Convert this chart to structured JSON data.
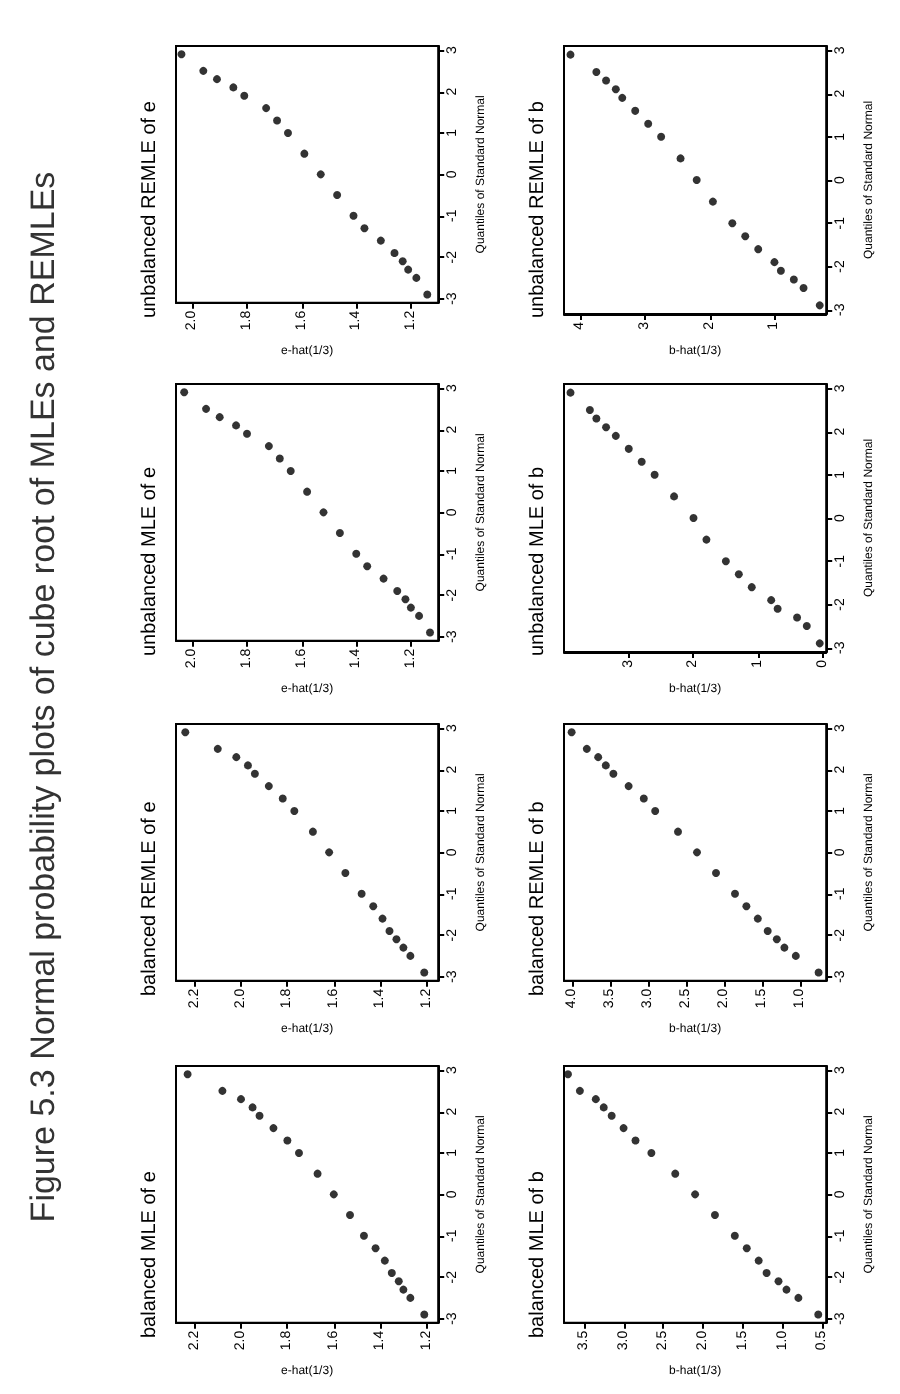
{
  "chart_data": [
    {
      "type": "scatter",
      "title": "balanced MLE of e",
      "xlabel": "e-hat(1/3)",
      "ylabel": "Quantiles of Standard Normal",
      "values": [
        -2.9,
        -2.5,
        -2.3,
        -2.1,
        -1.9,
        -1.6,
        -1.3,
        -1,
        -0.5,
        0,
        0.5,
        1,
        1.3,
        1.6,
        1.9,
        2.1,
        2.3,
        2.5,
        2.9
      ],
      "x": [
        1.21,
        1.27,
        1.3,
        1.32,
        1.35,
        1.38,
        1.42,
        1.47,
        1.53,
        1.6,
        1.67,
        1.75,
        1.8,
        1.86,
        1.92,
        1.95,
        2.0,
        2.08,
        2.23
      ],
      "color": "#000000",
      "marker": "circle",
      "ylim": [
        -3.1,
        3.1
      ],
      "yticks": [
        -3,
        -2,
        -1,
        0,
        1,
        2,
        3
      ],
      "xlim": [
        2.28,
        1.15
      ],
      "xticks": [
        1.2,
        1.4,
        1.6,
        1.8,
        {
          "value": 2,
          "label": "2.0"
        },
        2.2
      ]
    },
    {
      "type": "scatter",
      "title": "balanced REMLE of e",
      "xlabel": "e-hat(1/3)",
      "ylabel": "Quantiles of Standard Normal",
      "values": [
        -2.9,
        -2.5,
        -2.3,
        -2.1,
        -1.9,
        -1.6,
        -1.3,
        -1,
        -0.5,
        0,
        0.5,
        1,
        1.3,
        1.6,
        1.9,
        2.1,
        2.3,
        2.5,
        2.9
      ],
      "x": [
        1.21,
        1.27,
        1.3,
        1.33,
        1.36,
        1.39,
        1.43,
        1.48,
        1.55,
        1.62,
        1.69,
        1.77,
        1.82,
        1.88,
        1.94,
        1.97,
        2.02,
        2.1,
        2.24
      ],
      "color": "#000000",
      "marker": "circle",
      "ylim": [
        -3.1,
        3.1
      ],
      "yticks": [
        -3,
        -2,
        -1,
        0,
        1,
        2,
        3
      ],
      "xlim": [
        2.28,
        1.15
      ],
      "xticks": [
        1.2,
        1.4,
        1.6,
        1.8,
        {
          "value": 2,
          "label": "2.0"
        },
        2.2
      ]
    },
    {
      "type": "scatter",
      "title": "unbalanced MLE of e",
      "xlabel": "e-hat(1/3)",
      "ylabel": "Quantiles of Standard Normal",
      "values": [
        -2.9,
        -2.5,
        -2.3,
        -2.1,
        -1.9,
        -1.6,
        -1.3,
        -1,
        -0.5,
        0,
        0.5,
        1,
        1.3,
        1.6,
        1.9,
        2.1,
        2.3,
        2.5,
        2.9
      ],
      "x": [
        1.13,
        1.17,
        1.2,
        1.22,
        1.25,
        1.3,
        1.36,
        1.4,
        1.46,
        1.52,
        1.58,
        1.64,
        1.68,
        1.72,
        1.8,
        1.84,
        1.9,
        1.95,
        2.03
      ],
      "color": "#000000",
      "marker": "circle",
      "ylim": [
        -3.1,
        3.1
      ],
      "yticks": [
        -3,
        -2,
        -1,
        0,
        1,
        2,
        3
      ],
      "xlim": [
        2.06,
        1.1
      ],
      "xticks": [
        1.2,
        1.4,
        1.6,
        1.8,
        {
          "value": 2,
          "label": "2.0"
        }
      ]
    },
    {
      "type": "scatter",
      "title": "unbalanced REMLE of e",
      "xlabel": "e-hat(1/3)",
      "ylabel": "Quantiles of Standard Normal",
      "values": [
        -2.9,
        -2.5,
        -2.3,
        -2.1,
        -1.9,
        -1.6,
        -1.3,
        -1,
        -0.5,
        0,
        0.5,
        1,
        1.3,
        1.6,
        1.9,
        2.1,
        2.3,
        2.5,
        2.9
      ],
      "x": [
        1.14,
        1.18,
        1.21,
        1.23,
        1.26,
        1.31,
        1.37,
        1.41,
        1.47,
        1.53,
        1.59,
        1.65,
        1.69,
        1.73,
        1.81,
        1.85,
        1.91,
        1.96,
        2.04
      ],
      "color": "#000000",
      "marker": "circle",
      "ylim": [
        -3.1,
        3.1
      ],
      "yticks": [
        -3,
        -2,
        -1,
        0,
        1,
        2,
        3
      ],
      "xlim": [
        2.06,
        1.1
      ],
      "xticks": [
        1.2,
        1.4,
        1.6,
        1.8,
        {
          "value": 2,
          "label": "2.0"
        }
      ]
    },
    {
      "type": "scatter",
      "title": "balanced MLE of b",
      "xlabel": "b-hat(1/3)",
      "ylabel": "Quantiles of Standard Normal",
      "values": [
        -2.9,
        -2.5,
        -2.3,
        -2.1,
        -1.9,
        -1.6,
        -1.3,
        -1,
        -0.5,
        0,
        0.5,
        1,
        1.3,
        1.6,
        1.9,
        2.1,
        2.3,
        2.5,
        2.9
      ],
      "x": [
        0.55,
        0.8,
        0.95,
        1.05,
        1.2,
        1.3,
        1.45,
        1.6,
        1.85,
        2.1,
        2.35,
        2.65,
        2.85,
        3.0,
        3.15,
        3.25,
        3.35,
        3.55,
        3.7
      ],
      "color": "#000000",
      "marker": "circle",
      "ylim": [
        -3.1,
        3.1
      ],
      "yticks": [
        -3,
        -2,
        -1,
        0,
        1,
        2,
        3
      ],
      "xlim": [
        3.75,
        0.45
      ],
      "xticks": [
        0.5,
        {
          "value": 1,
          "label": "1.0"
        },
        1.5,
        {
          "value": 2,
          "label": "2.0"
        },
        2.5,
        {
          "value": 3,
          "label": "3.0"
        },
        3.5
      ]
    },
    {
      "type": "scatter",
      "title": "balanced REMLE of b",
      "xlabel": "b-hat(1/3)",
      "ylabel": "Quantiles of Standard Normal",
      "values": [
        -2.9,
        -2.5,
        -2.3,
        -2.1,
        -1.9,
        -1.6,
        -1.3,
        -1,
        -0.5,
        0,
        0.5,
        1,
        1.3,
        1.6,
        1.9,
        2.1,
        2.3,
        2.5,
        2.9
      ],
      "x": [
        0.75,
        1.05,
        1.2,
        1.3,
        1.42,
        1.55,
        1.7,
        1.85,
        2.1,
        2.35,
        2.6,
        2.9,
        3.05,
        3.25,
        3.45,
        3.55,
        3.65,
        3.8,
        4.0
      ],
      "color": "#000000",
      "marker": "circle",
      "ylim": [
        -3.1,
        3.1
      ],
      "yticks": [
        -3,
        -2,
        -1,
        0,
        1,
        2,
        3
      ],
      "xlim": [
        4.1,
        0.65
      ],
      "xticks": [
        {
          "value": 1,
          "label": "1.0"
        },
        1.5,
        {
          "value": 2,
          "label": "2.0"
        },
        2.5,
        {
          "value": 3,
          "label": "3.0"
        },
        3.5,
        {
          "value": 4,
          "label": "4.0"
        }
      ]
    },
    {
      "type": "scatter",
      "title": "unbalanced MLE of b",
      "xlabel": "b-hat(1/3)",
      "ylabel": "Quantiles of Standard Normal",
      "values": [
        -2.9,
        -2.5,
        -2.3,
        -2.1,
        -1.9,
        -1.6,
        -1.3,
        -1,
        -0.5,
        0,
        0.5,
        1,
        1.3,
        1.6,
        1.9,
        2.1,
        2.3,
        2.5,
        2.9
      ],
      "x": [
        0.05,
        0.25,
        0.4,
        0.7,
        0.8,
        1.1,
        1.3,
        1.5,
        1.8,
        2.0,
        2.3,
        2.6,
        2.8,
        3.0,
        3.2,
        3.35,
        3.5,
        3.6,
        3.9
      ],
      "color": "#000000",
      "marker": "circle",
      "ylim": [
        -3.1,
        3.1
      ],
      "yticks": [
        -3,
        -2,
        -1,
        0,
        1,
        2,
        3
      ],
      "xlim": [
        4.0,
        -0.05
      ],
      "xticks": [
        0,
        1,
        2,
        3
      ]
    },
    {
      "type": "scatter",
      "title": "unbalanced REMLE of b",
      "xlabel": "b-hat(1/3)",
      "ylabel": "Quantiles of Standard Normal",
      "values": [
        -2.9,
        -2.5,
        -2.3,
        -2.1,
        -1.9,
        -1.6,
        -1.3,
        -1,
        -0.5,
        0,
        0.5,
        1,
        1.3,
        1.6,
        1.9,
        2.1,
        2.3,
        2.5,
        2.9
      ],
      "x": [
        0.3,
        0.55,
        0.7,
        0.9,
        1.0,
        1.25,
        1.45,
        1.65,
        1.95,
        2.2,
        2.45,
        2.75,
        2.95,
        3.15,
        3.35,
        3.45,
        3.6,
        3.75,
        4.15
      ],
      "color": "#000000",
      "marker": "circle",
      "ylim": [
        -3.1,
        3.1
      ],
      "yticks": [
        -3,
        -2,
        -1,
        0,
        1,
        2,
        3
      ],
      "xlim": [
        4.25,
        0.2
      ],
      "xticks": [
        1,
        2,
        3,
        4
      ]
    },
    {
      "type": "other",
      "title": "Figure 5.3 Normal probability plots of cube root of MLEs and REMLEs"
    }
  ]
}
